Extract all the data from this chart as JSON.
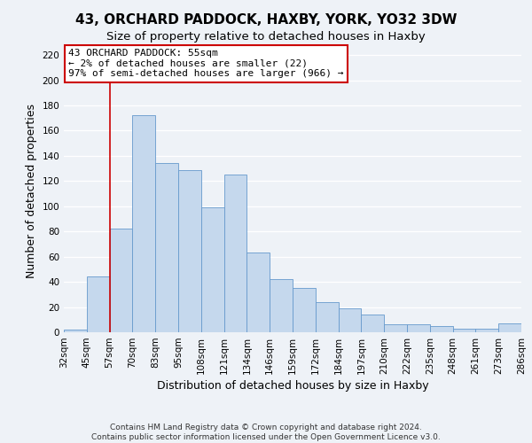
{
  "title": "43, ORCHARD PADDOCK, HAXBY, YORK, YO32 3DW",
  "subtitle": "Size of property relative to detached houses in Haxby",
  "xlabel": "Distribution of detached houses by size in Haxby",
  "ylabel": "Number of detached properties",
  "bin_labels": [
    "32sqm",
    "45sqm",
    "57sqm",
    "70sqm",
    "83sqm",
    "95sqm",
    "108sqm",
    "121sqm",
    "134sqm",
    "146sqm",
    "159sqm",
    "172sqm",
    "184sqm",
    "197sqm",
    "210sqm",
    "222sqm",
    "235sqm",
    "248sqm",
    "261sqm",
    "273sqm",
    "286sqm"
  ],
  "bar_values": [
    2,
    44,
    82,
    172,
    134,
    129,
    99,
    125,
    63,
    42,
    35,
    24,
    19,
    14,
    6,
    6,
    5,
    3,
    3,
    7
  ],
  "bar_color": "#c5d8ed",
  "bar_edge_color": "#6699cc",
  "ylim": [
    0,
    225
  ],
  "yticks": [
    0,
    20,
    40,
    60,
    80,
    100,
    120,
    140,
    160,
    180,
    200,
    220
  ],
  "vline_x": 2,
  "vline_color": "#cc0000",
  "annotation_title": "43 ORCHARD PADDOCK: 55sqm",
  "annotation_line1": "← 2% of detached houses are smaller (22)",
  "annotation_line2": "97% of semi-detached houses are larger (966) →",
  "annotation_box_color": "#ffffff",
  "annotation_box_edge": "#cc0000",
  "footer1": "Contains HM Land Registry data © Crown copyright and database right 2024.",
  "footer2": "Contains public sector information licensed under the Open Government Licence v3.0.",
  "background_color": "#eef2f7",
  "grid_color": "#ffffff",
  "title_fontsize": 11,
  "subtitle_fontsize": 9.5,
  "axis_label_fontsize": 9,
  "tick_fontsize": 7.5,
  "annotation_fontsize": 8,
  "footer_fontsize": 6.5
}
